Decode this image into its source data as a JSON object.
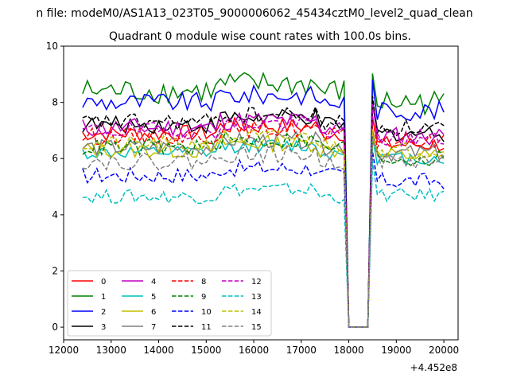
{
  "chart_data": {
    "type": "line",
    "suptitle": "n file: modeM0/AS1A13_023T05_9000006062_45434cztM0_level2_quad_clean",
    "title": "Quadrant 0 module wise count rates with 100.0s bins.",
    "xlabel": "",
    "ylabel": "",
    "x_offset_label": "+4.452e8",
    "xlim": [
      12000,
      20300
    ],
    "ylim": [
      -0.45,
      10
    ],
    "xticks": [
      12000,
      13000,
      14000,
      15000,
      16000,
      17000,
      18000,
      19000,
      20000
    ],
    "xtick_labels": [
      "12000",
      "13000",
      "14000",
      "15000",
      "16000",
      "17000",
      "18000",
      "19000",
      "20000"
    ],
    "yticks": [
      0,
      2,
      4,
      6,
      8,
      10
    ],
    "ytick_labels": [
      "0",
      "2",
      "4",
      "6",
      "8",
      "10"
    ],
    "legend_position": "lower-left",
    "legend_columns": 4,
    "x_segments": [
      [
        12400,
        17900
      ],
      [
        18500,
        20000
      ]
    ],
    "bin_width": 100,
    "gap": {
      "start": 18000,
      "end": 18400,
      "value": 0
    },
    "series": [
      {
        "name": "0",
        "color": "#ff0000",
        "dash": "solid",
        "level1": 6.9,
        "level2": 6.5,
        "amp": 0.3
      },
      {
        "name": "1",
        "color": "#008000",
        "dash": "solid",
        "level1": 8.4,
        "level2": 8.0,
        "amp": 0.45
      },
      {
        "name": "2",
        "color": "#0000ff",
        "dash": "solid",
        "level1": 8.0,
        "level2": 7.7,
        "amp": 0.35
      },
      {
        "name": "3",
        "color": "#000000",
        "dash": "solid",
        "level1": 7.2,
        "level2": 6.9,
        "amp": 0.3
      },
      {
        "name": "4",
        "color": "#bf00bf",
        "dash": "solid",
        "level1": 7.1,
        "level2": 6.8,
        "amp": 0.35
      },
      {
        "name": "5",
        "color": "#00bfbf",
        "dash": "solid",
        "level1": 6.2,
        "level2": 6.0,
        "amp": 0.25
      },
      {
        "name": "6",
        "color": "#bfbf00",
        "dash": "solid",
        "level1": 6.3,
        "level2": 6.1,
        "amp": 0.3
      },
      {
        "name": "7",
        "color": "#808080",
        "dash": "solid",
        "level1": 6.4,
        "level2": 6.2,
        "amp": 0.3
      },
      {
        "name": "8",
        "color": "#ff0000",
        "dash": "dashed",
        "level1": 6.8,
        "level2": 6.6,
        "amp": 0.3
      },
      {
        "name": "9",
        "color": "#008000",
        "dash": "dashed",
        "level1": 6.4,
        "level2": 6.0,
        "amp": 0.3
      },
      {
        "name": "10",
        "color": "#0000ff",
        "dash": "dashed",
        "level1": 5.4,
        "level2": 5.2,
        "amp": 0.3
      },
      {
        "name": "11",
        "color": "#000000",
        "dash": "dashed",
        "level1": 7.3,
        "level2": 7.1,
        "amp": 0.3
      },
      {
        "name": "12",
        "color": "#bf00bf",
        "dash": "dashed",
        "level1": 7.0,
        "level2": 6.7,
        "amp": 0.3
      },
      {
        "name": "13",
        "color": "#00bfbf",
        "dash": "dashed",
        "level1": 4.65,
        "level2": 4.7,
        "amp": 0.25
      },
      {
        "name": "14",
        "color": "#bfbf00",
        "dash": "dashed",
        "level1": 6.5,
        "level2": 6.3,
        "amp": 0.3
      },
      {
        "name": "15",
        "color": "#808080",
        "dash": "dashed",
        "level1": 5.9,
        "level2": 5.9,
        "amp": 0.3
      }
    ]
  }
}
